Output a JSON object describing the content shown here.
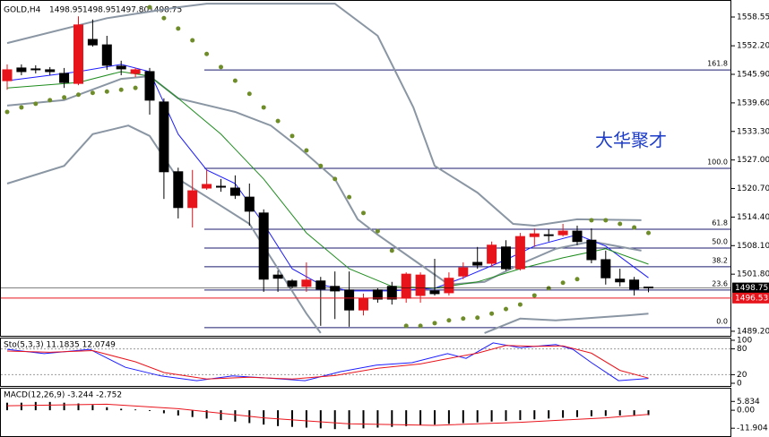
{
  "chart_data": [
    {
      "type": "candlestick",
      "symbol": "GOLD,H4",
      "quote_labels": [
        "1498.95",
        "1498.95",
        "1497.80",
        "1498.75"
      ],
      "watermark": "大华聚才",
      "up_color": "#e8141c",
      "down_color": "#000000",
      "open": [
        1544.5,
        1547.3,
        1547.1,
        1546.9,
        1546.1,
        1543.9,
        1553.6,
        1552.4,
        1547.7,
        1546.1,
        1546.5,
        1539.8,
        1524.4,
        1516.5,
        1520.8,
        1521.2,
        1520.8,
        1518.8,
        1515.3,
        1501.6,
        1500.3,
        1499.1,
        1500.3,
        1499.1,
        1498.3,
        1493.9,
        1498.3,
        1499.1,
        1496.5,
        1497.1,
        1498.1,
        1497.7,
        1501.4,
        1504.4,
        1504.2,
        1507.8,
        1503.0,
        1510.1,
        1510.5,
        1510.5,
        1511.3,
        1509.3,
        1505.0,
        1500.7,
        1500.5,
        1498.95
      ],
      "high": [
        1548.1,
        1548.1,
        1547.9,
        1547.5,
        1547.3,
        1558.7,
        1558.0,
        1554.4,
        1548.9,
        1547.3,
        1547.3,
        1540.6,
        1525.3,
        1524.8,
        1524.8,
        1522.8,
        1523.6,
        1521.8,
        1516.1,
        1502.6,
        1500.7,
        1504.4,
        1501.2,
        1502.4,
        1502.4,
        1497.5,
        1498.7,
        1500.1,
        1502.2,
        1502.2,
        1505.2,
        1502.2,
        1504.4,
        1507.8,
        1509.0,
        1509.3,
        1510.9,
        1511.9,
        1511.7,
        1512.9,
        1512.5,
        1511.9,
        1507.0,
        1503.0,
        1501.2,
        1498.95
      ],
      "low": [
        1542.5,
        1545.7,
        1546.1,
        1545.7,
        1542.9,
        1543.5,
        1552.0,
        1546.9,
        1545.7,
        1545.3,
        1537.0,
        1518.4,
        1514.1,
        1512.1,
        1520.4,
        1520.0,
        1518.4,
        1512.5,
        1497.9,
        1497.9,
        1498.7,
        1497.9,
        1490.4,
        1491.9,
        1490.2,
        1492.7,
        1495.5,
        1495.1,
        1495.5,
        1495.5,
        1497.1,
        1497.1,
        1500.7,
        1503.0,
        1503.4,
        1502.6,
        1502.6,
        1507.8,
        1509.0,
        1510.1,
        1508.2,
        1504.2,
        1499.5,
        1499.1,
        1497.1,
        1497.8
      ],
      "close": [
        1546.9,
        1546.5,
        1546.9,
        1546.5,
        1544.1,
        1556.8,
        1552.4,
        1547.9,
        1547.1,
        1546.9,
        1540.2,
        1524.4,
        1516.5,
        1520.2,
        1521.6,
        1521.2,
        1519.2,
        1515.7,
        1500.7,
        1500.9,
        1499.1,
        1500.5,
        1498.5,
        1498.1,
        1493.9,
        1496.5,
        1496.3,
        1496.3,
        1501.8,
        1501.6,
        1497.5,
        1500.9,
        1503.2,
        1503.8,
        1508.2,
        1503.0,
        1510.1,
        1510.7,
        1510.5,
        1511.3,
        1509.0,
        1505.0,
        1501.0,
        1500.1,
        1498.5,
        1498.75
      ],
      "ylim": [
        1488.79,
        1561.71
      ],
      "yticks": [
        1558.55,
        {
          "value": 1552.2,
          "label": "1552.20"
        },
        {
          "value": 1545.9,
          "label": "1545.90"
        },
        {
          "value": 1539.6,
          "label": "1539.60"
        },
        {
          "value": 1533.3,
          "label": "1533.30"
        },
        {
          "value": 1527,
          "label": "1527.00"
        },
        {
          "value": 1520.7,
          "label": "1520.70"
        },
        {
          "value": 1514.4,
          "label": "1514.40"
        },
        {
          "value": 1508.1,
          "label": "1508.10"
        },
        {
          "value": 1501.8,
          "label": "1501.80"
        },
        {
          "value": 1489.2,
          "label": "1489.20"
        }
      ],
      "price_markers": [
        {
          "value": 1498.75,
          "color": "#000000"
        },
        {
          "value": 1496.53,
          "color": "#e8141c"
        }
      ],
      "fibo": {
        "price_0": 1490.0,
        "price_100": 1525.15,
        "color": "#1a1a6e",
        "levels": [
          161.8,
          100,
          61.8,
          50,
          38.2,
          23.6,
          0
        ],
        "level_labels": [
          "161.8",
          "100.0",
          "61.8",
          "50.0",
          "38.2",
          "23.6",
          "0.0"
        ]
      },
      "overlays": [
        {
          "style": "line",
          "color": "#8a96a3",
          "x": [
            0,
            7,
            12,
            14,
            23,
            26,
            28.5,
            30,
            33,
            35.5,
            37,
            40,
            44.5
          ],
          "values": [
            1552.8,
            1558.3,
            1560.7,
            1561.5,
            1561.5,
            1554.4,
            1538.6,
            1525.7,
            1519.8,
            1512.9,
            1512.5,
            1513.9,
            1513.7
          ]
        },
        {
          "style": "line",
          "color": "#8a96a3",
          "x": [
            0,
            4,
            8,
            10,
            12,
            16,
            18.5,
            20.5,
            23,
            24.6,
            26,
            28.5,
            31,
            33.5,
            36,
            38.5,
            41,
            44.5
          ],
          "values": [
            1539.0,
            1540.2,
            1544.9,
            1545.5,
            1540.6,
            1537.6,
            1534.6,
            1529.7,
            1522.8,
            1513.9,
            1510.5,
            1505.0,
            1499.5,
            1500.1,
            1504.0,
            1507.4,
            1509.0,
            1507.0
          ]
        },
        {
          "style": "line",
          "color": "#8a96a3",
          "x": [
            0,
            4,
            6,
            8.5,
            10,
            12,
            15,
            17,
            19,
            21,
            22,
            27,
            33.5,
            36,
            38.5,
            43.5,
            45
          ],
          "values": [
            1521.8,
            1525.7,
            1532.7,
            1534.6,
            1532.3,
            1522.8,
            1516.9,
            1512.9,
            1503.0,
            1493.1,
            1488.8,
            null,
            1488.8,
            1492.0,
            1491.6,
            1492.7,
            1493.1
          ]
        },
        {
          "style": "thin",
          "color": "#1c1cff",
          "x": [
            0,
            5,
            8,
            10,
            12,
            14,
            16,
            18,
            20,
            22,
            24,
            27,
            30,
            32,
            35,
            37,
            40,
            42,
            45
          ],
          "values": [
            1544.5,
            1546.5,
            1548.1,
            1546.5,
            1532.7,
            1524.8,
            1521.8,
            1512.9,
            1503.0,
            1499.5,
            1498.1,
            1498.1,
            1498.7,
            1501.0,
            1505.0,
            1508.0,
            1510.5,
            1508.0,
            1501.0
          ]
        },
        {
          "style": "thin",
          "color": "#1e8c1e",
          "x": [
            0,
            5,
            8,
            10,
            12,
            15,
            18,
            21,
            24,
            27,
            30,
            33,
            36,
            39,
            42,
            45
          ],
          "values": [
            1542.9,
            1544.1,
            1546.5,
            1545.5,
            1540.6,
            1532.7,
            1522.8,
            1510.9,
            1503.0,
            1499.1,
            1498.7,
            1500.1,
            1503.0,
            1505.4,
            1507.4,
            1504.0
          ]
        },
        {
          "style": "dots",
          "color": "#6e8c28",
          "x": [
            0,
            1,
            2,
            3,
            4,
            5,
            6,
            7,
            8,
            9,
            10,
            11,
            12,
            13,
            14,
            15,
            16,
            17,
            18,
            19,
            20,
            21,
            22,
            23,
            24,
            25,
            26,
            27,
            28,
            29,
            30,
            31,
            32,
            33,
            34,
            35,
            36,
            37,
            38,
            39,
            40,
            41,
            42,
            43,
            44,
            45
          ],
          "values": [
            1537.6,
            1538.6,
            1539.4,
            1540.2,
            1540.8,
            1541.4,
            1541.8,
            1542.1,
            1542.5,
            1542.9,
            1560.7,
            1558.3,
            1556.0,
            1553.4,
            1550.4,
            1547.5,
            1544.5,
            1541.6,
            1538.6,
            1535.6,
            1532.3,
            1529.1,
            1525.7,
            1522.8,
            1518.8,
            1515.3,
            1511.3,
            1507.0,
            1490.4,
            1490.4,
            1491.0,
            1491.6,
            1492.0,
            1492.2,
            1493.1,
            1494.1,
            1495.1,
            1497.1,
            1498.7,
            1499.9,
            1500.7,
            1513.7,
            1513.7,
            1512.9,
            1512.1,
            1510.9
          ]
        }
      ]
    },
    {
      "type": "line",
      "title": "Sto(5,3,3) 11.1835 12.0749",
      "ylim": [
        0,
        100
      ],
      "yticks": [
        100,
        80,
        20,
        0
      ],
      "series": [
        {
          "color": "#1c1cff",
          "x": [
            0,
            2.6,
            5.8,
            8.3,
            10.8,
            13.3,
            15.8,
            18.4,
            20.9,
            23.4,
            25.9,
            28.4,
            30.9,
            32.2,
            34.1,
            36,
            38.5,
            39.7,
            41,
            42.9,
            45
          ],
          "values": [
            79,
            69,
            79,
            37,
            17,
            6,
            17,
            12,
            6,
            27,
            42,
            48,
            69,
            58,
            94,
            83,
            90,
            79,
            48,
            6,
            11.1835
          ]
        },
        {
          "color": "#e8141c",
          "x": [
            0,
            3,
            6,
            9,
            11,
            14,
            17,
            20,
            23,
            26,
            29,
            31,
            33,
            35,
            37,
            39,
            41,
            43,
            45
          ],
          "values": [
            75,
            72,
            76,
            50,
            25,
            10,
            14,
            10,
            18,
            35,
            45,
            58,
            70,
            88,
            86,
            87,
            70,
            30,
            12.0749
          ]
        }
      ]
    },
    {
      "type": "macd",
      "title": "MACD(12,26,9) -3.244 -2.752",
      "ylim": [
        -16.53,
        7.78
      ],
      "yticks": [
        5.834,
        {
          "value": 0,
          "label": "0.00"
        },
        -11.904
      ],
      "values": [
        5,
        5,
        5.5,
        5.5,
        5,
        4.5,
        3.5,
        2,
        1,
        0.5,
        -0.5,
        -2,
        -3.5,
        -4.5,
        -5.5,
        -6.5,
        -7.5,
        -8.5,
        -9.5,
        -10.5,
        -11,
        -11.5,
        -12,
        -12.5,
        -12.5,
        -12,
        -11.5,
        -11,
        -10.5,
        -10,
        -9.5,
        -9,
        -8.5,
        -8,
        -7.5,
        -7,
        -6.5,
        -6,
        -5.5,
        -5,
        -4.5,
        -4,
        -3.8,
        -3.5,
        -3.3,
        -3.244
      ],
      "signal": {
        "color": "#e8141c",
        "x": [
          0,
          7,
          12,
          18,
          24,
          30,
          36,
          42,
          45
        ],
        "values": [
          3,
          4,
          1,
          -5,
          -9,
          -10,
          -8,
          -5,
          -2.752
        ]
      }
    }
  ]
}
